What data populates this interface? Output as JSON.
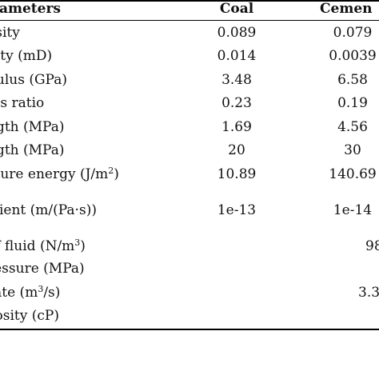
{
  "table": {
    "headers": {
      "parameter": "rameters",
      "coal": "Coal",
      "cement": "Cemen"
    },
    "rows": [
      {
        "parameter": "osity",
        "coal": "0.089",
        "cement": "0.079"
      },
      {
        "parameter": "ility (mD)",
        "coal": "0.014",
        "cement": "0.0039"
      },
      {
        "parameter": "dulus (GPa)",
        "coal": "3.48",
        "cement": "6.58"
      },
      {
        "parameter": "n’s ratio",
        "coal": "0.23",
        "cement": "0.19"
      },
      {
        "parameter": "ngth (MPa)",
        "coal": "1.69",
        "cement": "4.56"
      },
      {
        "parameter": "ngth (MPa)",
        "coal": "20",
        "cement": "30"
      },
      {
        "parameter_main": "cture energy (J/m",
        "parameter_sup": "2",
        "parameter_tail": ")",
        "coal": "10.89",
        "cement": "140.69"
      },
      {
        "parameter": "icient (m/(Pa·s))",
        "coal": "1e-13",
        "cement": "1e-14"
      }
    ],
    "shared_rows": [
      {
        "parameter_main": " of fluid (N/m",
        "parameter_sup": "3",
        "parameter_tail": ")",
        "value": "98"
      },
      {
        "parameter": "ressure (MPa)",
        "value": ""
      },
      {
        "parameter_main": "rate (m",
        "parameter_sup": "3",
        "parameter_tail": "/s)",
        "value": "3.3"
      },
      {
        "parameter": "cosity (cP)",
        "value": ""
      }
    ]
  }
}
